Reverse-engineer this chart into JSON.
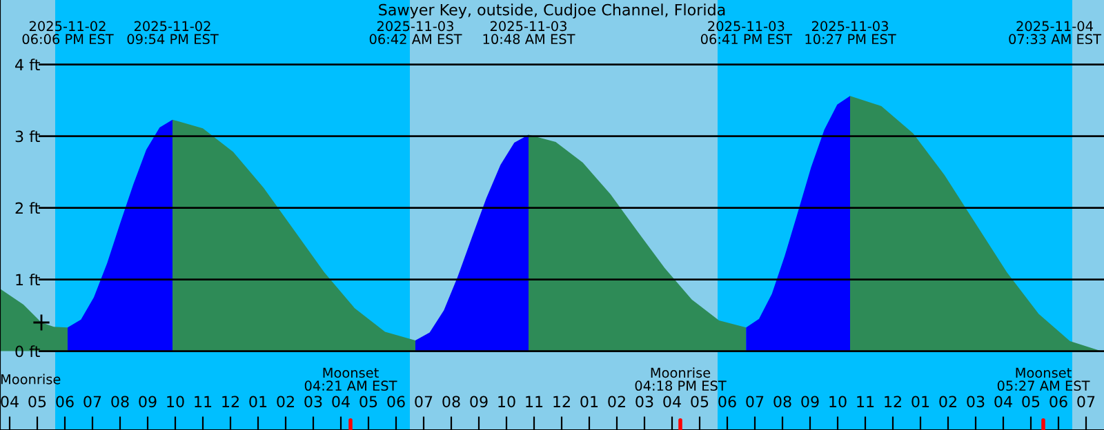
{
  "chart_data": {
    "type": "area",
    "title": "Sawyer Key, outside, Cudjoe Channel, Florida",
    "xlim": [
      "2025-11-02T15:39",
      "2025-11-04T07:39"
    ],
    "ylim": [
      -1.1,
      4.9
    ],
    "xticks": [
      {
        "value": "2025-11-02T16:00",
        "label": "04"
      },
      {
        "value": "2025-11-02T17:00",
        "label": "05"
      },
      {
        "value": "2025-11-02T18:00",
        "label": "06"
      },
      {
        "value": "2025-11-02T19:00",
        "label": "07"
      },
      {
        "value": "2025-11-02T20:00",
        "label": "08"
      },
      {
        "value": "2025-11-02T21:00",
        "label": "09"
      },
      {
        "value": "2025-11-02T22:00",
        "label": "10"
      },
      {
        "value": "2025-11-02T23:00",
        "label": "11"
      },
      {
        "value": "2025-11-03T00:00",
        "label": "12"
      },
      {
        "value": "2025-11-03T01:00",
        "label": "01"
      },
      {
        "value": "2025-11-03T02:00",
        "label": "02"
      },
      {
        "value": "2025-11-03T03:00",
        "label": "03"
      },
      {
        "value": "2025-11-03T04:00",
        "label": "04"
      },
      {
        "value": "2025-11-03T05:00",
        "label": "05"
      },
      {
        "value": "2025-11-03T06:00",
        "label": "06"
      },
      {
        "value": "2025-11-03T07:00",
        "label": "07"
      },
      {
        "value": "2025-11-03T08:00",
        "label": "08"
      },
      {
        "value": "2025-11-03T09:00",
        "label": "09"
      },
      {
        "value": "2025-11-03T10:00",
        "label": "10"
      },
      {
        "value": "2025-11-03T11:00",
        "label": "11"
      },
      {
        "value": "2025-11-03T12:00",
        "label": "12"
      },
      {
        "value": "2025-11-03T13:00",
        "label": "01"
      },
      {
        "value": "2025-11-03T14:00",
        "label": "02"
      },
      {
        "value": "2025-11-03T15:00",
        "label": "03"
      },
      {
        "value": "2025-11-03T16:00",
        "label": "04"
      },
      {
        "value": "2025-11-03T17:00",
        "label": "05"
      },
      {
        "value": "2025-11-03T18:00",
        "label": "06"
      },
      {
        "value": "2025-11-03T19:00",
        "label": "07"
      },
      {
        "value": "2025-11-03T20:00",
        "label": "08"
      },
      {
        "value": "2025-11-03T21:00",
        "label": "09"
      },
      {
        "value": "2025-11-03T22:00",
        "label": "10"
      },
      {
        "value": "2025-11-03T23:00",
        "label": "11"
      },
      {
        "value": "2025-11-04T00:00",
        "label": "12"
      },
      {
        "value": "2025-11-04T01:00",
        "label": "01"
      },
      {
        "value": "2025-11-04T02:00",
        "label": "02"
      },
      {
        "value": "2025-11-04T03:00",
        "label": "03"
      },
      {
        "value": "2025-11-04T04:00",
        "label": "04"
      },
      {
        "value": "2025-11-04T05:00",
        "label": "05"
      },
      {
        "value": "2025-11-04T06:00",
        "label": "06"
      },
      {
        "value": "2025-11-04T07:00",
        "label": "07"
      }
    ],
    "yticks": [
      {
        "value": 0,
        "label": "0 ft"
      },
      {
        "value": 1,
        "label": "1 ft"
      },
      {
        "value": 2,
        "label": "2 ft"
      },
      {
        "value": 3,
        "label": "3 ft"
      },
      {
        "value": 4,
        "label": "4 ft"
      }
    ],
    "grid": "y",
    "bands": [
      {
        "axis": "x",
        "from": "2025-11-02T15:39",
        "to": "2025-11-02T17:39",
        "color": "#87ceeb"
      },
      {
        "axis": "x",
        "from": "2025-11-02T17:39",
        "to": "2025-11-03T06:30",
        "color": "#00bfff"
      },
      {
        "axis": "x",
        "from": "2025-11-03T06:30",
        "to": "2025-11-03T17:39",
        "color": "#87ceeb"
      },
      {
        "axis": "x",
        "from": "2025-11-03T17:39",
        "to": "2025-11-04T06:30",
        "color": "#00bfff"
      },
      {
        "axis": "x",
        "from": "2025-11-04T06:30",
        "to": "2025-11-04T07:39",
        "color": "#87ceeb"
      }
    ],
    "series": [
      {
        "color": "#2e8b57",
        "x": [
          "2025-11-02T15:39",
          "2025-11-02T16:30",
          "2025-11-02T17:09",
          "2025-11-02T17:36",
          "2025-11-02T18:06"
        ],
        "values": [
          0.87,
          0.65,
          0.4,
          0.34,
          0.33
        ]
      },
      {
        "color": "#0000ff",
        "x": [
          "2025-11-02T18:06",
          "2025-11-02T18:35",
          "2025-11-02T19:03",
          "2025-11-02T19:32",
          "2025-11-02T20:00",
          "2025-11-02T20:29",
          "2025-11-02T20:57",
          "2025-11-02T21:26",
          "2025-11-02T21:54"
        ],
        "values": [
          0.33,
          0.44,
          0.75,
          1.23,
          1.78,
          2.33,
          2.81,
          3.12,
          3.23
        ]
      },
      {
        "color": "#2e8b57",
        "x": [
          "2025-11-02T21:54",
          "2025-11-02T23:00",
          "2025-11-03T00:06",
          "2025-11-03T01:12",
          "2025-11-03T02:18",
          "2025-11-03T03:24",
          "2025-11-03T04:30",
          "2025-11-03T05:36",
          "2025-11-03T06:42"
        ],
        "values": [
          3.23,
          3.11,
          2.78,
          2.28,
          1.69,
          1.1,
          0.6,
          0.27,
          0.15
        ]
      },
      {
        "color": "#0000ff",
        "x": [
          "2025-11-03T06:42",
          "2025-11-03T07:13",
          "2025-11-03T07:44",
          "2025-11-03T08:14",
          "2025-11-03T08:45",
          "2025-11-03T09:16",
          "2025-11-03T09:47",
          "2025-11-03T10:17",
          "2025-11-03T10:48"
        ],
        "values": [
          0.15,
          0.26,
          0.57,
          1.04,
          1.59,
          2.13,
          2.6,
          2.91,
          3.02
        ]
      },
      {
        "color": "#2e8b57",
        "x": [
          "2025-11-03T10:48",
          "2025-11-03T11:47",
          "2025-11-03T12:46",
          "2025-11-03T13:46",
          "2025-11-03T14:44",
          "2025-11-03T15:44",
          "2025-11-03T16:43",
          "2025-11-03T17:42",
          "2025-11-03T18:41"
        ],
        "values": [
          3.02,
          2.92,
          2.63,
          2.19,
          1.68,
          1.16,
          0.72,
          0.43,
          0.33
        ]
      },
      {
        "color": "#0000ff",
        "x": [
          "2025-11-03T18:41",
          "2025-11-03T19:09",
          "2025-11-03T19:37",
          "2025-11-03T20:05",
          "2025-11-03T20:34",
          "2025-11-03T21:02",
          "2025-11-03T21:31",
          "2025-11-03T21:59",
          "2025-11-03T22:27"
        ],
        "values": [
          0.33,
          0.45,
          0.8,
          1.33,
          1.95,
          2.56,
          3.09,
          3.44,
          3.56
        ]
      },
      {
        "color": "#2e8b57",
        "x": [
          "2025-11-03T22:27",
          "2025-11-03T23:35",
          "2025-11-04T00:44",
          "2025-11-04T01:52",
          "2025-11-04T03:00",
          "2025-11-04T04:08",
          "2025-11-04T05:17",
          "2025-11-04T06:25",
          "2025-11-04T07:33"
        ],
        "values": [
          3.56,
          3.42,
          3.04,
          2.46,
          1.78,
          1.1,
          0.52,
          0.14,
          0.0
        ]
      },
      {
        "type": "scatter",
        "marker": "cross",
        "color": "#000000",
        "x": [
          "2025-11-02T17:09"
        ],
        "values": [
          0.4
        ]
      }
    ],
    "annotations": [
      "2025-11-02\n06:06 PM EST",
      "2025-11-02\n09:54 PM EST",
      "2025-11-03\n06:42 AM EST",
      "2025-11-03\n10:48 AM EST",
      "2025-11-03\n06:41 PM EST",
      "2025-11-03\n10:27 PM EST",
      "2025-11-04\n07:33 AM EST",
      "Moonrise",
      {
        "text": "Moonset\n04:21 AM EST",
        "x": "2025-11-03T04:21",
        "y": -1.1
      },
      {
        "text": "Moonrise\n04:18 PM EST",
        "x": "2025-11-03T16:18",
        "y": -1.1
      },
      {
        "text": "Moonset\n05:27 AM EST",
        "x": "2025-11-04T05:27",
        "y": -1.1
      }
    ]
  }
}
